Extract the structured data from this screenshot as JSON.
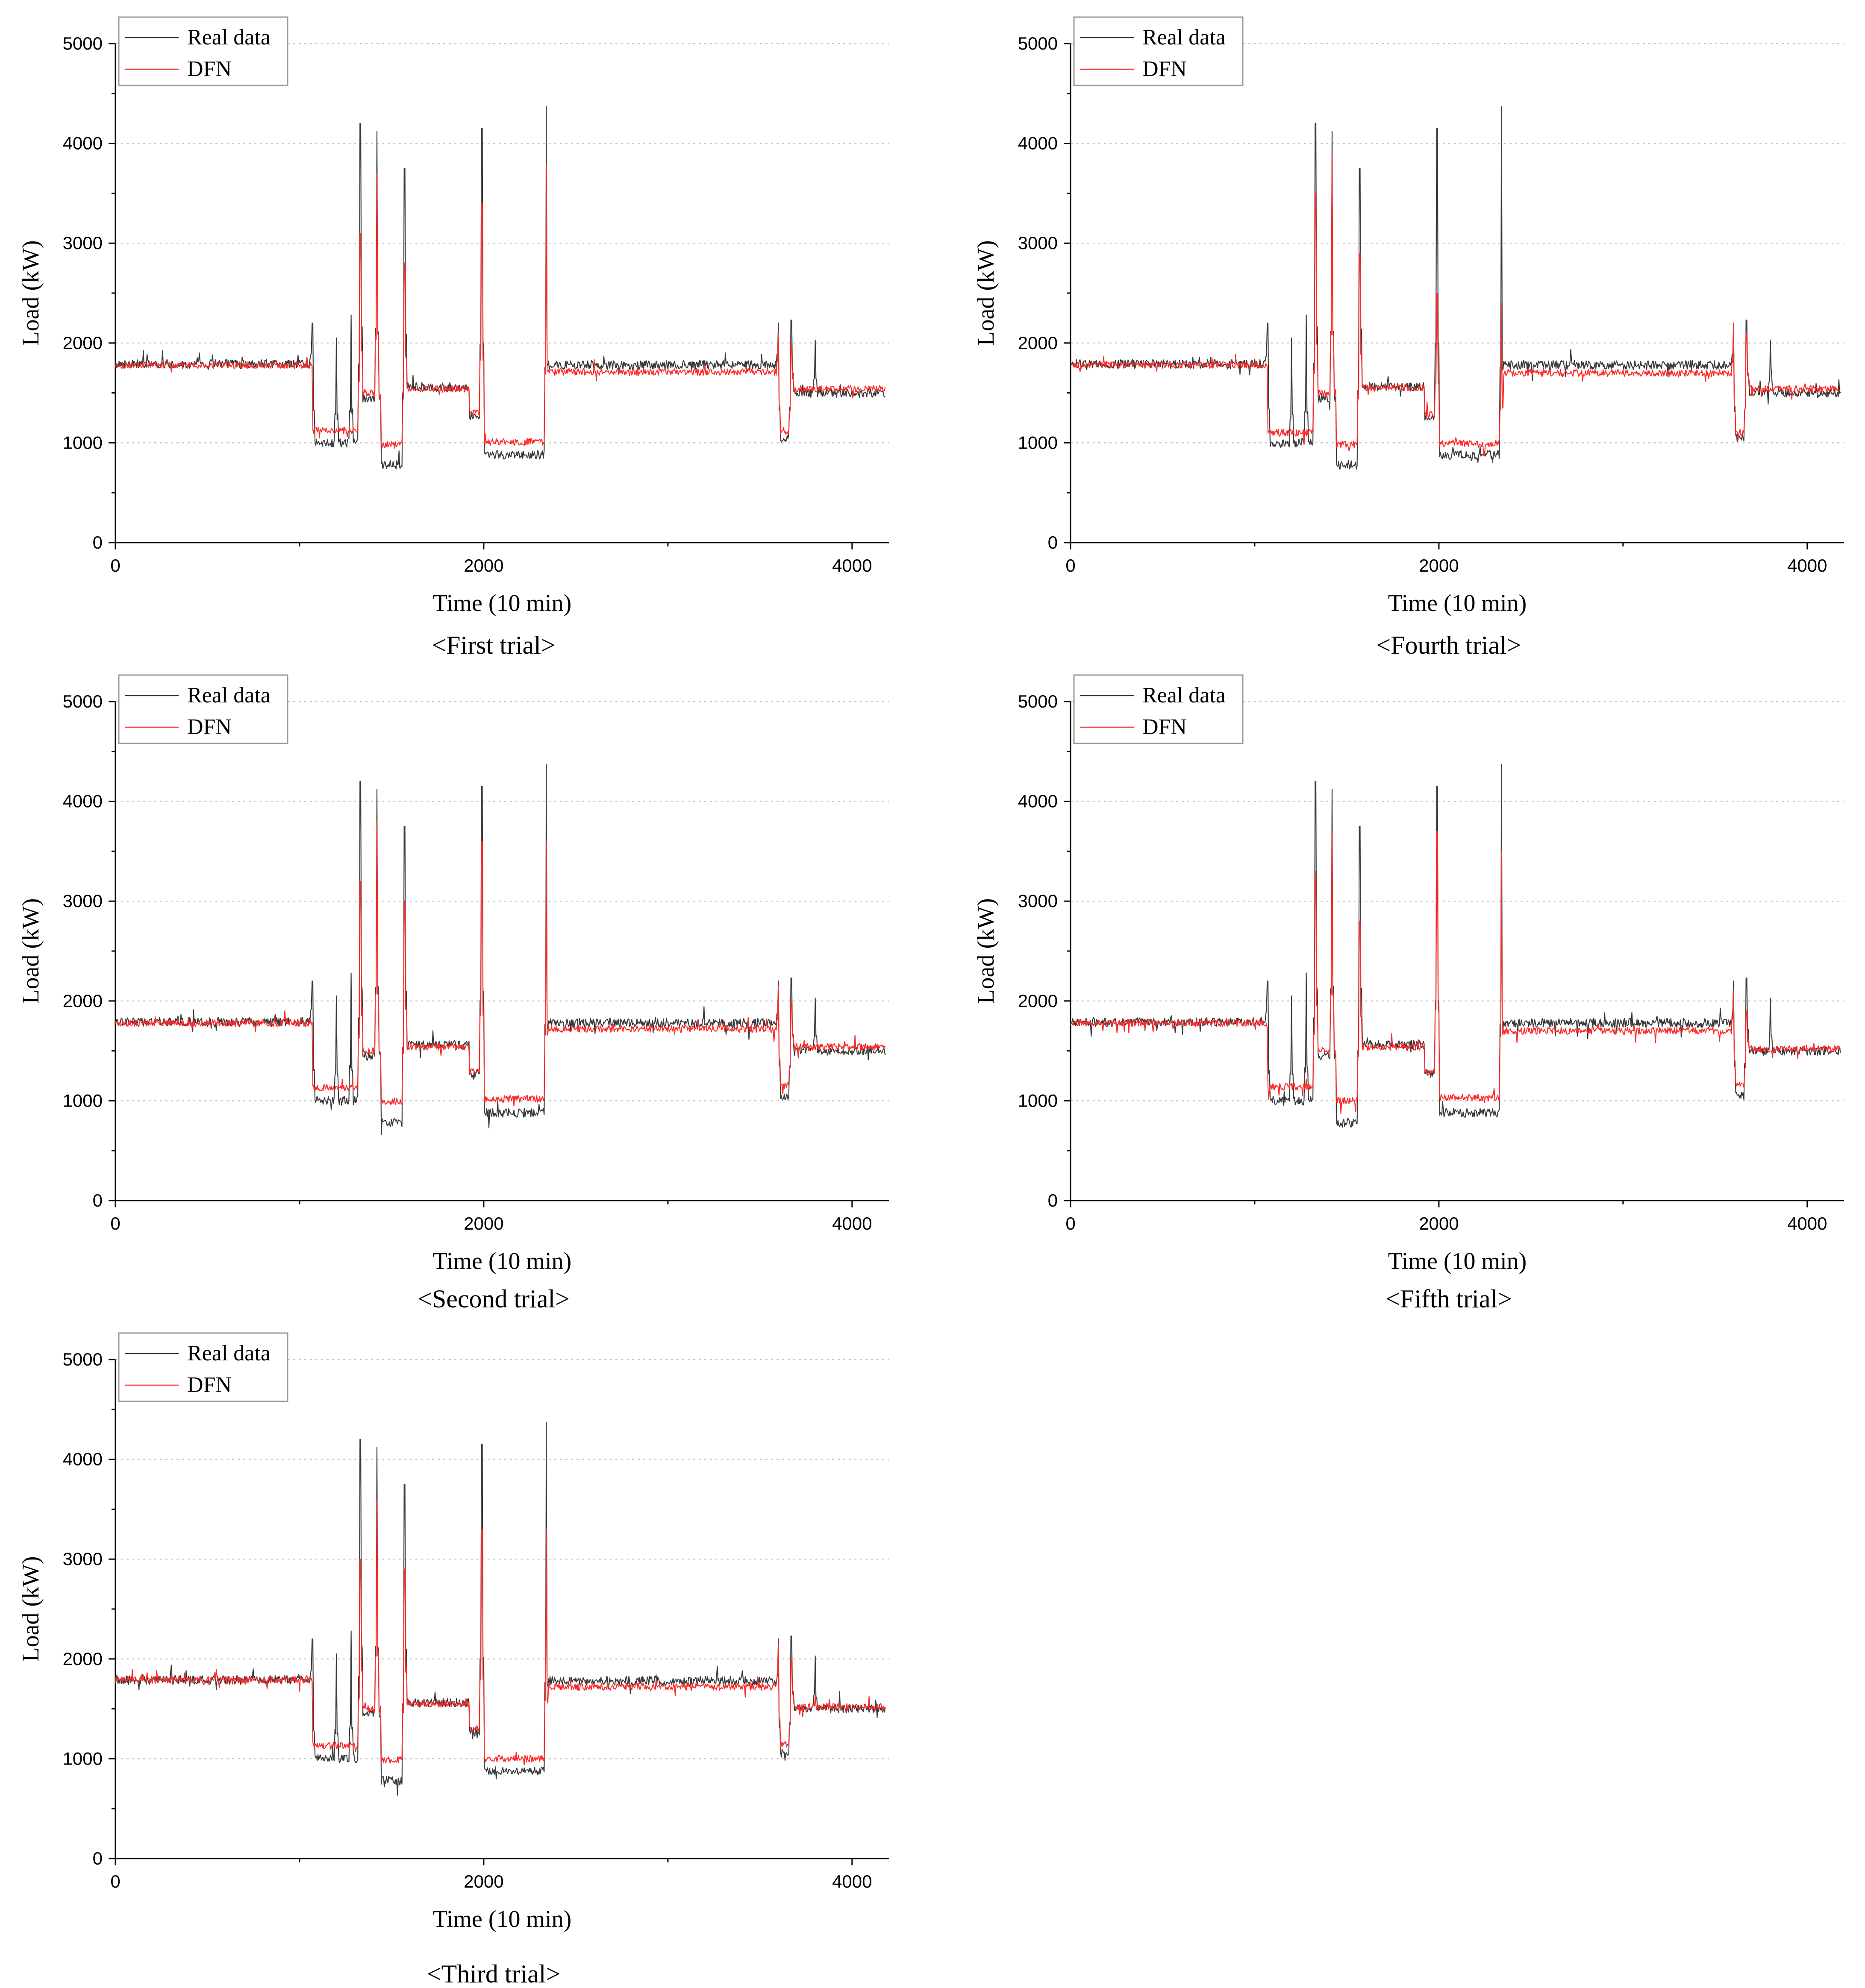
{
  "figure": {
    "colors": {
      "real": "#3a3a3a",
      "dfn": "#ff2a2a",
      "grid": "#c8c8c8",
      "axis": "#000000"
    }
  },
  "chart_data": [
    {
      "type": "line",
      "trial_label": "<First trial>",
      "xlabel": "Time (10 min)",
      "ylabel": "Load (kW)",
      "xlim": [
        0,
        4200
      ],
      "ylim": [
        0,
        5000
      ],
      "xticks": [
        0,
        2000,
        4000
      ],
      "yticks": [
        0,
        1000,
        2000,
        3000,
        4000,
        5000
      ],
      "grid": "horizontal-dotted",
      "legend_position": "top-left",
      "series": [
        {
          "name": "Real data",
          "color": "#3a3a3a",
          "sample_step": 10,
          "values_note": "approx. load per 10-min sample"
        },
        {
          "name": "DFN",
          "color": "#ff2a2a",
          "sample_step": 10,
          "values_note": "approx. forecast per 10-min sample"
        }
      ],
      "segments": [
        {
          "x": [
            0,
            1070
          ],
          "real": 1790,
          "dfn": 1780
        },
        {
          "x": [
            1070,
            1330
          ],
          "real": 1000,
          "dfn": 1120
        },
        {
          "x": [
            1330,
            1440
          ],
          "real": 1450,
          "dfn": 1500
        },
        {
          "x": [
            1440,
            1570
          ],
          "real": 780,
          "dfn": 980
        },
        {
          "x": [
            1570,
            1920
          ],
          "real": 1560,
          "dfn": 1540
        },
        {
          "x": [
            1920,
            2000
          ],
          "real": 1270,
          "dfn": 1300
        },
        {
          "x": [
            2000,
            2350
          ],
          "real": 880,
          "dfn": 1010
        },
        {
          "x": [
            2350,
            3600
          ],
          "real": 1780,
          "dfn": 1710
        },
        {
          "x": [
            3600,
            3670
          ],
          "real": 1050,
          "dfn": 1120
        },
        {
          "x": [
            3670,
            4200
          ],
          "real": 1500,
          "dfn": 1540
        }
      ],
      "peaks_real": [
        [
          1070,
          2200
        ],
        [
          1200,
          2050
        ],
        [
          1280,
          2280
        ],
        [
          1330,
          4200
        ],
        [
          1420,
          4120
        ],
        [
          1570,
          3750
        ],
        [
          1990,
          4150
        ],
        [
          2340,
          4370
        ],
        [
          3600,
          2200
        ],
        [
          3670,
          2230
        ],
        [
          3800,
          2030
        ]
      ],
      "peaks_dfn": [
        [
          1330,
          3100
        ],
        [
          1420,
          3700
        ],
        [
          1570,
          2800
        ],
        [
          1990,
          3400
        ],
        [
          2340,
          3800
        ],
        [
          3600,
          2100
        ],
        [
          3670,
          2000
        ]
      ]
    },
    {
      "type": "line",
      "trial_label": "<Second trial>",
      "xlabel": "Time (10 min)",
      "ylabel": "Load (kW)",
      "xlim": [
        0,
        4200
      ],
      "ylim": [
        0,
        5000
      ],
      "xticks": [
        0,
        2000,
        4000
      ],
      "yticks": [
        0,
        1000,
        2000,
        3000,
        4000,
        5000
      ],
      "grid": "horizontal-dotted",
      "legend_position": "top-left",
      "series": [
        {
          "name": "Real data",
          "color": "#3a3a3a"
        },
        {
          "name": "DFN",
          "color": "#ff2a2a"
        }
      ],
      "segments": [
        {
          "x": [
            0,
            1070
          ],
          "real": 1790,
          "dfn": 1780
        },
        {
          "x": [
            1070,
            1330
          ],
          "real": 1000,
          "dfn": 1130
        },
        {
          "x": [
            1330,
            1440
          ],
          "real": 1450,
          "dfn": 1500
        },
        {
          "x": [
            1440,
            1570
          ],
          "real": 780,
          "dfn": 990
        },
        {
          "x": [
            1570,
            1920
          ],
          "real": 1560,
          "dfn": 1540
        },
        {
          "x": [
            1920,
            2000
          ],
          "real": 1270,
          "dfn": 1300
        },
        {
          "x": [
            2000,
            2350
          ],
          "real": 880,
          "dfn": 1020
        },
        {
          "x": [
            2350,
            3600
          ],
          "real": 1780,
          "dfn": 1720
        },
        {
          "x": [
            3600,
            3670
          ],
          "real": 1050,
          "dfn": 1150
        },
        {
          "x": [
            3670,
            4200
          ],
          "real": 1500,
          "dfn": 1540
        }
      ],
      "peaks_real": [
        [
          1070,
          2200
        ],
        [
          1200,
          2050
        ],
        [
          1280,
          2280
        ],
        [
          1330,
          4200
        ],
        [
          1420,
          4120
        ],
        [
          1570,
          3750
        ],
        [
          1990,
          4150
        ],
        [
          2340,
          4370
        ],
        [
          3600,
          2200
        ],
        [
          3670,
          2230
        ],
        [
          3800,
          2030
        ]
      ],
      "peaks_dfn": [
        [
          1330,
          3200
        ],
        [
          1420,
          3800
        ],
        [
          1570,
          3000
        ],
        [
          1990,
          3600
        ],
        [
          2340,
          3600
        ],
        [
          3600,
          2150
        ],
        [
          3670,
          2000
        ]
      ]
    },
    {
      "type": "line",
      "trial_label": "<Third trial>",
      "xlabel": "Time (10 min)",
      "ylabel": "Load (kW)",
      "xlim": [
        0,
        4200
      ],
      "ylim": [
        0,
        5000
      ],
      "xticks": [
        0,
        2000,
        4000
      ],
      "yticks": [
        0,
        1000,
        2000,
        3000,
        4000,
        5000
      ],
      "grid": "horizontal-dotted",
      "legend_position": "top-left",
      "series": [
        {
          "name": "Real data",
          "color": "#3a3a3a"
        },
        {
          "name": "DFN",
          "color": "#ff2a2a"
        }
      ],
      "segments": [
        {
          "x": [
            0,
            1070
          ],
          "real": 1790,
          "dfn": 1790
        },
        {
          "x": [
            1070,
            1330
          ],
          "real": 1000,
          "dfn": 1130
        },
        {
          "x": [
            1330,
            1440
          ],
          "real": 1450,
          "dfn": 1500
        },
        {
          "x": [
            1440,
            1570
          ],
          "real": 780,
          "dfn": 990
        },
        {
          "x": [
            1570,
            1920
          ],
          "real": 1560,
          "dfn": 1550
        },
        {
          "x": [
            1920,
            2000
          ],
          "real": 1270,
          "dfn": 1300
        },
        {
          "x": [
            2000,
            2350
          ],
          "real": 880,
          "dfn": 1000
        },
        {
          "x": [
            2350,
            3600
          ],
          "real": 1780,
          "dfn": 1720
        },
        {
          "x": [
            3600,
            3670
          ],
          "real": 1050,
          "dfn": 1150
        },
        {
          "x": [
            3670,
            4200
          ],
          "real": 1500,
          "dfn": 1520
        }
      ],
      "peaks_real": [
        [
          1070,
          2200
        ],
        [
          1200,
          2050
        ],
        [
          1280,
          2280
        ],
        [
          1330,
          4200
        ],
        [
          1420,
          4120
        ],
        [
          1570,
          3750
        ],
        [
          1990,
          4150
        ],
        [
          2340,
          4370
        ],
        [
          3600,
          2200
        ],
        [
          3670,
          2230
        ],
        [
          3800,
          2030
        ]
      ],
      "peaks_dfn": [
        [
          1330,
          3000
        ],
        [
          1420,
          3600
        ],
        [
          1570,
          2900
        ],
        [
          1990,
          3300
        ],
        [
          2340,
          3300
        ],
        [
          3600,
          2150
        ],
        [
          3670,
          2000
        ]
      ]
    },
    {
      "type": "line",
      "trial_label": "<Fourth trial>",
      "xlabel": "Time (10 min)",
      "ylabel": "Load (kW)",
      "xlim": [
        0,
        4200
      ],
      "ylim": [
        0,
        5000
      ],
      "xticks": [
        0,
        2000,
        4000
      ],
      "yticks": [
        0,
        1000,
        2000,
        3000,
        4000,
        5000
      ],
      "grid": "horizontal-dotted",
      "legend_position": "top-left",
      "series": [
        {
          "name": "Real data",
          "color": "#3a3a3a"
        },
        {
          "name": "DFN",
          "color": "#ff2a2a"
        }
      ],
      "segments": [
        {
          "x": [
            0,
            1070
          ],
          "real": 1790,
          "dfn": 1780
        },
        {
          "x": [
            1070,
            1330
          ],
          "real": 1000,
          "dfn": 1100
        },
        {
          "x": [
            1330,
            1440
          ],
          "real": 1450,
          "dfn": 1500
        },
        {
          "x": [
            1440,
            1570
          ],
          "real": 780,
          "dfn": 980
        },
        {
          "x": [
            1570,
            1920
          ],
          "real": 1560,
          "dfn": 1550
        },
        {
          "x": [
            1920,
            2000
          ],
          "real": 1270,
          "dfn": 1280
        },
        {
          "x": [
            2000,
            2350
          ],
          "real": 880,
          "dfn": 990
        },
        {
          "x": [
            2350,
            3600
          ],
          "real": 1780,
          "dfn": 1700
        },
        {
          "x": [
            3600,
            3670
          ],
          "real": 1050,
          "dfn": 1100
        },
        {
          "x": [
            3670,
            4200
          ],
          "real": 1500,
          "dfn": 1540
        }
      ],
      "peaks_real": [
        [
          1070,
          2200
        ],
        [
          1200,
          2050
        ],
        [
          1280,
          2280
        ],
        [
          1330,
          4200
        ],
        [
          1420,
          4120
        ],
        [
          1570,
          3750
        ],
        [
          1990,
          4150
        ],
        [
          2340,
          4370
        ],
        [
          3600,
          2200
        ],
        [
          3670,
          2230
        ],
        [
          3800,
          2030
        ]
      ],
      "peaks_dfn": [
        [
          1330,
          3500
        ],
        [
          1420,
          3900
        ],
        [
          1570,
          2900
        ],
        [
          1990,
          2500
        ],
        [
          2340,
          2400
        ],
        [
          3600,
          2200
        ],
        [
          3670,
          2100
        ]
      ]
    },
    {
      "type": "line",
      "trial_label": "<Fifth trial>",
      "xlabel": "Time (10 min)",
      "ylabel": "Load (kW)",
      "xlim": [
        0,
        4200
      ],
      "ylim": [
        0,
        5000
      ],
      "xticks": [
        0,
        2000,
        4000
      ],
      "yticks": [
        0,
        1000,
        2000,
        3000,
        4000,
        5000
      ],
      "grid": "horizontal-dotted",
      "legend_position": "top-left",
      "series": [
        {
          "name": "Real data",
          "color": "#3a3a3a"
        },
        {
          "name": "DFN",
          "color": "#ff2a2a"
        }
      ],
      "segments": [
        {
          "x": [
            0,
            1070
          ],
          "real": 1790,
          "dfn": 1780
        },
        {
          "x": [
            1070,
            1330
          ],
          "real": 1000,
          "dfn": 1140
        },
        {
          "x": [
            1330,
            1440
          ],
          "real": 1450,
          "dfn": 1500
        },
        {
          "x": [
            1440,
            1570
          ],
          "real": 780,
          "dfn": 1000
        },
        {
          "x": [
            1570,
            1920
          ],
          "real": 1560,
          "dfn": 1540
        },
        {
          "x": [
            1920,
            2000
          ],
          "real": 1270,
          "dfn": 1290
        },
        {
          "x": [
            2000,
            2350
          ],
          "real": 880,
          "dfn": 1030
        },
        {
          "x": [
            2350,
            3600
          ],
          "real": 1780,
          "dfn": 1700
        },
        {
          "x": [
            3600,
            3670
          ],
          "real": 1050,
          "dfn": 1150
        },
        {
          "x": [
            3670,
            4200
          ],
          "real": 1500,
          "dfn": 1520
        }
      ],
      "peaks_real": [
        [
          1070,
          2200
        ],
        [
          1200,
          2050
        ],
        [
          1280,
          2280
        ],
        [
          1330,
          4200
        ],
        [
          1420,
          4120
        ],
        [
          1570,
          3750
        ],
        [
          1990,
          4150
        ],
        [
          2340,
          4370
        ],
        [
          3600,
          2200
        ],
        [
          3670,
          2230
        ],
        [
          3800,
          2030
        ]
      ],
      "peaks_dfn": [
        [
          1330,
          3300
        ],
        [
          1420,
          3700
        ],
        [
          1570,
          2800
        ],
        [
          1990,
          3700
        ],
        [
          2340,
          3500
        ],
        [
          3600,
          2100
        ],
        [
          3670,
          1900
        ]
      ]
    }
  ]
}
